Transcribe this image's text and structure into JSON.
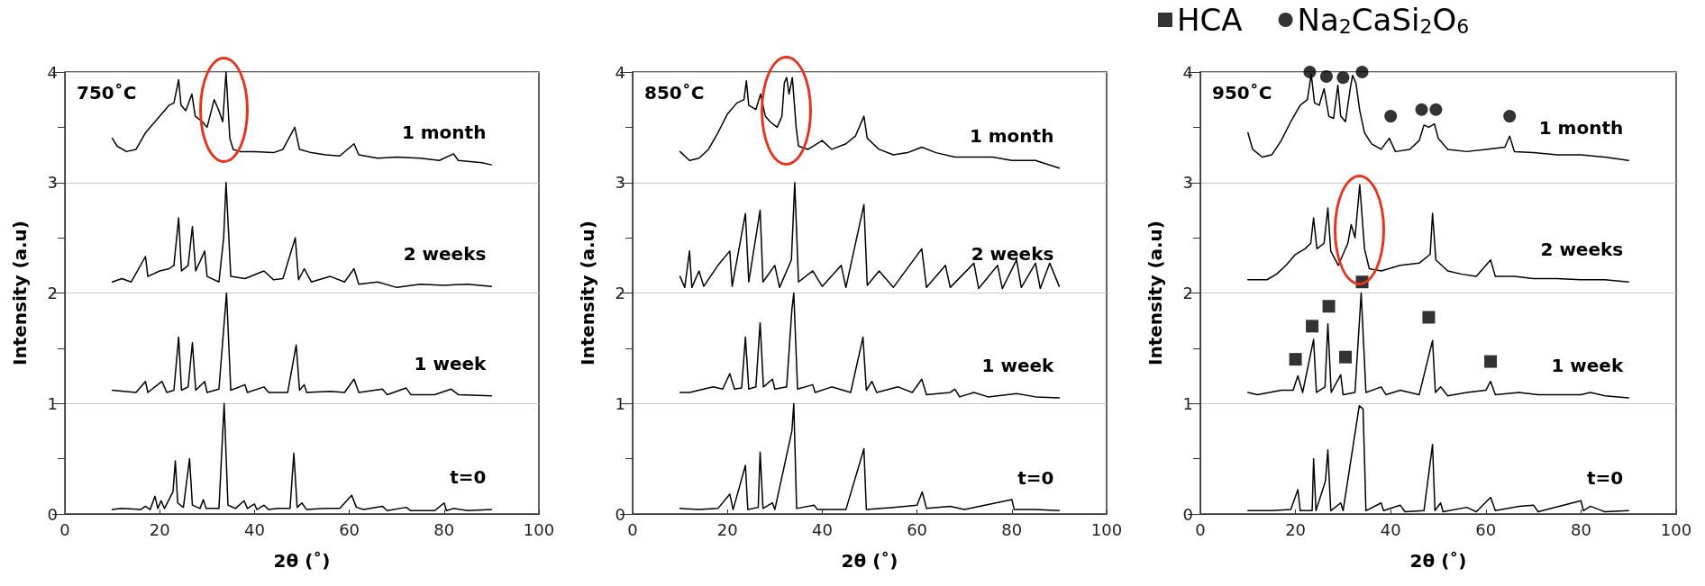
{
  "chart_data": [
    {
      "type": "line",
      "title": "750˚C",
      "xlabel": "2θ (˚)",
      "ylabel": "Intensity (a.u)",
      "xlim": [
        0,
        100
      ],
      "xticks": [
        0,
        20,
        40,
        60,
        80,
        100
      ],
      "ylim": [
        0,
        4
      ],
      "yticks": [
        0,
        {
          "value": 0.5,
          "label": null
        },
        1,
        {
          "value": 1.5,
          "label": null
        },
        2,
        {
          "value": 2.5,
          "label": null
        },
        3,
        {
          "value": 3.5,
          "label": null
        },
        4
      ],
      "grid": "y",
      "marker": "none",
      "line_style": "solid",
      "legend": false,
      "series": [
        {
          "name": "t=0",
          "color": "#000000",
          "x": [
            10,
            12,
            16,
            17,
            18,
            19,
            19.6,
            20.3,
            21,
            22.8,
            23.3,
            23.8,
            25,
            26.3,
            26.9,
            28.5,
            29.2,
            29.8,
            32.5,
            33.6,
            34.4,
            36,
            37.8,
            38.5,
            40,
            40.5,
            42,
            43,
            45,
            47.5,
            48.3,
            49,
            50,
            51,
            55,
            58,
            60.5,
            61.5,
            63,
            67,
            68,
            72,
            73,
            78,
            80,
            80.5,
            82,
            85,
            90
          ],
          "values": [
            0.04,
            0.05,
            0.04,
            0.07,
            0.04,
            0.16,
            0.05,
            0.12,
            0.05,
            0.2,
            0.48,
            0.1,
            0.06,
            0.5,
            0.08,
            0.05,
            0.13,
            0.05,
            0.05,
            1.0,
            0.08,
            0.05,
            0.12,
            0.05,
            0.09,
            0.04,
            0.08,
            0.04,
            0.05,
            0.05,
            0.55,
            0.06,
            0.1,
            0.04,
            0.05,
            0.05,
            0.17,
            0.06,
            0.04,
            0.07,
            0.03,
            0.06,
            0.03,
            0.03,
            0.1,
            0.03,
            0.05,
            0.03,
            0.04
          ]
        },
        {
          "name": "1 week",
          "color": "#000000",
          "x": [
            10,
            15,
            17,
            17.5,
            20.5,
            21.5,
            23,
            24,
            24.6,
            26,
            26.9,
            27.6,
            29.5,
            30,
            32.5,
            34.1,
            35,
            38,
            38.5,
            42,
            43,
            47,
            48.8,
            49.5,
            50.5,
            51,
            56,
            59,
            61,
            62,
            67,
            68,
            72,
            73,
            78,
            81.5,
            83,
            90
          ],
          "values": [
            1.12,
            1.1,
            1.2,
            1.1,
            1.2,
            1.1,
            1.12,
            1.6,
            1.12,
            1.15,
            1.55,
            1.12,
            1.2,
            1.1,
            1.13,
            2.0,
            1.12,
            1.17,
            1.1,
            1.15,
            1.1,
            1.1,
            1.53,
            1.12,
            1.17,
            1.1,
            1.11,
            1.1,
            1.22,
            1.1,
            1.13,
            1.08,
            1.14,
            1.08,
            1.08,
            1.13,
            1.08,
            1.07
          ]
        },
        {
          "name": "2 weeks",
          "color": "#000000",
          "x": [
            10,
            12,
            14,
            17,
            17.5,
            20,
            22,
            23,
            24,
            24.6,
            26,
            26.9,
            27.6,
            29.5,
            30,
            32.5,
            33.5,
            34,
            35,
            38,
            42,
            44,
            46,
            48.6,
            49.3,
            50.5,
            52,
            56,
            59,
            61,
            62,
            66,
            70,
            75,
            80,
            85,
            90
          ],
          "values": [
            2.1,
            2.13,
            2.1,
            2.33,
            2.15,
            2.2,
            2.22,
            2.25,
            2.68,
            2.2,
            2.25,
            2.6,
            2.2,
            2.38,
            2.15,
            2.1,
            2.5,
            3.0,
            2.15,
            2.13,
            2.2,
            2.12,
            2.13,
            2.5,
            2.12,
            2.22,
            2.1,
            2.15,
            2.1,
            2.22,
            2.08,
            2.1,
            2.05,
            2.08,
            2.07,
            2.08,
            2.06
          ]
        },
        {
          "name": "1 month",
          "color": "#000000",
          "x": [
            10,
            11,
            13,
            15,
            17,
            19,
            21,
            22,
            23,
            24,
            24.5,
            25.5,
            26.8,
            27.5,
            29,
            30,
            31.5,
            32.5,
            33.3,
            34,
            34.8,
            35.5,
            37,
            40,
            44,
            46,
            48.5,
            49.5,
            52,
            55,
            58,
            61,
            62,
            66,
            70,
            75,
            79,
            82,
            83,
            88,
            90
          ],
          "values": [
            3.4,
            3.33,
            3.28,
            3.3,
            3.45,
            3.55,
            3.65,
            3.7,
            3.72,
            3.93,
            3.7,
            3.65,
            3.8,
            3.6,
            3.55,
            3.5,
            3.75,
            3.65,
            3.55,
            4.0,
            3.4,
            3.3,
            3.28,
            3.28,
            3.27,
            3.3,
            3.5,
            3.3,
            3.27,
            3.25,
            3.24,
            3.35,
            3.25,
            3.22,
            3.23,
            3.22,
            3.2,
            3.26,
            3.2,
            3.18,
            3.16
          ]
        }
      ]
    },
    {
      "type": "line",
      "title": "850˚C",
      "xlabel": "2θ (˚)",
      "ylabel": "Intensity (a.u)",
      "xlim": [
        0,
        100
      ],
      "xticks": [
        0,
        20,
        40,
        60,
        80,
        100
      ],
      "ylim": [
        0,
        4
      ],
      "yticks": [
        0,
        {
          "value": 0.5,
          "label": null
        },
        1,
        {
          "value": 1.5,
          "label": null
        },
        2,
        {
          "value": 2.5,
          "label": null
        },
        3,
        {
          "value": 3.5,
          "label": null
        },
        4
      ],
      "grid": "y",
      "marker": "none",
      "line_style": "solid",
      "legend": false,
      "series": [
        {
          "name": "t=0",
          "color": "#000000",
          "x": [
            10,
            14,
            18,
            20.5,
            21.2,
            23.8,
            24.3,
            26.5,
            26.9,
            27.5,
            29.5,
            30,
            33.6,
            34,
            34.6,
            38.3,
            39,
            45,
            48.8,
            49.3,
            55,
            60,
            61.1,
            62,
            67,
            70,
            80,
            80.5,
            85,
            90
          ],
          "values": [
            0.05,
            0.04,
            0.05,
            0.18,
            0.04,
            0.44,
            0.04,
            0.06,
            0.56,
            0.05,
            0.1,
            0.04,
            0.75,
            1.0,
            0.05,
            0.08,
            0.04,
            0.04,
            0.59,
            0.04,
            0.06,
            0.08,
            0.2,
            0.05,
            0.07,
            0.04,
            0.13,
            0.04,
            0.04,
            0.03
          ]
        },
        {
          "name": "1 week",
          "color": "#000000",
          "x": [
            10,
            12,
            17,
            19,
            20.5,
            21.5,
            23,
            23.8,
            24.5,
            26,
            26.9,
            27.6,
            29.5,
            30,
            32.5,
            33.6,
            34,
            34.8,
            38,
            38.5,
            42,
            46,
            48.6,
            49.3,
            50.5,
            51.5,
            56,
            59,
            61,
            62,
            67,
            68,
            69,
            72,
            75,
            81,
            85,
            90
          ],
          "values": [
            1.1,
            1.1,
            1.15,
            1.13,
            1.27,
            1.13,
            1.14,
            1.6,
            1.13,
            1.15,
            1.73,
            1.15,
            1.22,
            1.13,
            1.15,
            1.85,
            2.0,
            1.13,
            1.17,
            1.1,
            1.15,
            1.1,
            1.6,
            1.12,
            1.2,
            1.1,
            1.15,
            1.1,
            1.22,
            1.08,
            1.1,
            1.13,
            1.06,
            1.1,
            1.06,
            1.09,
            1.06,
            1.05
          ]
        },
        {
          "name": "2 weeks",
          "color": "#000000",
          "x": [
            10,
            11,
            12,
            12.5,
            14,
            15,
            18,
            20.5,
            21,
            23.8,
            24.5,
            26.9,
            27.5,
            30,
            31,
            33.5,
            34.2,
            35,
            38,
            40,
            44,
            45,
            48.8,
            49.5,
            52,
            55,
            61,
            62,
            66,
            67,
            72,
            73,
            77,
            78,
            81,
            82,
            85,
            86,
            88,
            90
          ],
          "values": [
            2.15,
            2.05,
            2.38,
            2.05,
            2.2,
            2.06,
            2.25,
            2.38,
            2.06,
            2.72,
            2.1,
            2.75,
            2.1,
            2.25,
            2.05,
            2.3,
            3.0,
            2.1,
            2.2,
            2.06,
            2.25,
            2.05,
            2.8,
            2.07,
            2.2,
            2.05,
            2.4,
            2.05,
            2.25,
            2.05,
            2.27,
            2.04,
            2.25,
            2.04,
            2.3,
            2.05,
            2.27,
            2.04,
            2.27,
            2.06
          ]
        },
        {
          "name": "1 month",
          "color": "#000000",
          "x": [
            10,
            12,
            14,
            16,
            18,
            20,
            22,
            23.5,
            24,
            24.5,
            26,
            27,
            28,
            29,
            30.5,
            31.5,
            32,
            32.5,
            33,
            33.7,
            34.5,
            35,
            37,
            40,
            42,
            45,
            47,
            48.8,
            49.5,
            52,
            55,
            58,
            61,
            64,
            68,
            72,
            76,
            80,
            85,
            90
          ],
          "values": [
            3.28,
            3.2,
            3.22,
            3.3,
            3.45,
            3.62,
            3.72,
            3.75,
            3.92,
            3.7,
            3.66,
            3.8,
            3.6,
            3.55,
            3.5,
            3.6,
            3.9,
            3.95,
            3.8,
            3.95,
            3.5,
            3.33,
            3.3,
            3.38,
            3.3,
            3.35,
            3.42,
            3.6,
            3.4,
            3.3,
            3.25,
            3.27,
            3.32,
            3.27,
            3.23,
            3.23,
            3.23,
            3.2,
            3.2,
            3.13
          ]
        }
      ]
    },
    {
      "type": "line",
      "title": "950˚C",
      "xlabel": "2θ (˚)",
      "ylabel": "Intensity (a.u)",
      "xlim": [
        0,
        100
      ],
      "xticks": [
        0,
        20,
        40,
        60,
        80,
        100
      ],
      "ylim": [
        0,
        4
      ],
      "yticks": [
        0,
        {
          "value": 0.5,
          "label": null
        },
        1,
        {
          "value": 1.5,
          "label": null
        },
        2,
        {
          "value": 2.5,
          "label": null
        },
        3,
        {
          "value": 3.5,
          "label": null
        },
        4
      ],
      "grid": "y",
      "marker": "none",
      "line_style": "solid",
      "legend": "top",
      "series": [
        {
          "name": "t=0",
          "color": "#000000",
          "x": [
            10,
            15,
            19,
            20.5,
            21,
            23.5,
            23.8,
            24.3,
            26.3,
            26.8,
            27.4,
            29.5,
            30,
            33.4,
            34.2,
            34.8,
            38,
            38.5,
            42,
            43,
            47,
            48.8,
            49.3,
            50.5,
            51,
            56,
            58,
            61,
            62,
            67,
            70,
            71,
            80,
            80.5,
            82,
            85,
            90
          ],
          "values": [
            0.03,
            0.03,
            0.04,
            0.22,
            0.03,
            0.03,
            0.5,
            0.03,
            0.3,
            0.58,
            0.03,
            0.1,
            0.03,
            0.98,
            0.95,
            0.03,
            0.1,
            0.03,
            0.08,
            0.02,
            0.03,
            0.63,
            0.03,
            0.1,
            0.02,
            0.06,
            0.02,
            0.15,
            0.03,
            0.07,
            0.08,
            0.02,
            0.12,
            0.03,
            0.07,
            0.02,
            0.03
          ]
        },
        {
          "name": "1 week",
          "color": "#000000",
          "x": [
            10,
            12,
            17,
            19.5,
            20.5,
            21.5,
            23.8,
            24.4,
            26.2,
            26.8,
            27.5,
            29.5,
            30,
            32.5,
            33.8,
            34.8,
            38,
            39,
            42,
            46,
            48.8,
            49.4,
            50.5,
            52,
            56,
            60,
            61,
            62,
            67,
            71,
            80,
            82,
            85,
            90
          ],
          "values": [
            1.1,
            1.08,
            1.12,
            1.12,
            1.25,
            1.1,
            1.58,
            1.1,
            1.15,
            1.72,
            1.1,
            1.26,
            1.08,
            1.1,
            2.0,
            1.1,
            1.15,
            1.08,
            1.12,
            1.08,
            1.57,
            1.1,
            1.15,
            1.07,
            1.1,
            1.12,
            1.2,
            1.08,
            1.1,
            1.08,
            1.08,
            1.1,
            1.07,
            1.05
          ]
        },
        {
          "name": "2 weeks",
          "color": "#000000",
          "x": [
            10,
            14,
            16,
            18,
            20,
            22,
            23.2,
            23.8,
            24.5,
            26,
            26.8,
            27.4,
            29,
            31,
            31.7,
            32.5,
            33.5,
            34.5,
            35.5,
            38,
            42,
            46,
            48.3,
            48.8,
            49.5,
            52,
            55,
            58,
            61,
            62,
            66,
            70,
            75,
            80,
            85,
            90
          ],
          "values": [
            2.12,
            2.12,
            2.17,
            2.25,
            2.35,
            2.4,
            2.45,
            2.68,
            2.4,
            2.45,
            2.77,
            2.38,
            2.25,
            2.45,
            2.62,
            2.5,
            2.98,
            2.4,
            2.22,
            2.2,
            2.25,
            2.27,
            2.35,
            2.72,
            2.3,
            2.2,
            2.17,
            2.15,
            2.3,
            2.15,
            2.15,
            2.13,
            2.13,
            2.12,
            2.12,
            2.1
          ]
        },
        {
          "name": "1 month",
          "color": "#000000",
          "x": [
            10,
            11,
            13,
            15,
            17,
            19,
            21,
            22.5,
            23.3,
            24,
            25,
            26,
            27,
            28,
            28.9,
            29.5,
            30.5,
            31.5,
            32,
            32.7,
            33.5,
            34.5,
            36,
            38,
            39.7,
            41,
            44,
            46,
            47,
            48,
            49.2,
            50,
            52,
            56,
            60,
            64,
            65,
            66,
            70,
            75,
            80,
            85,
            90
          ],
          "values": [
            3.45,
            3.3,
            3.23,
            3.25,
            3.38,
            3.55,
            3.7,
            3.75,
            3.98,
            3.72,
            3.7,
            3.85,
            3.6,
            3.58,
            3.88,
            3.6,
            3.55,
            3.85,
            3.97,
            3.9,
            3.65,
            3.45,
            3.35,
            3.3,
            3.4,
            3.28,
            3.3,
            3.38,
            3.52,
            3.5,
            3.53,
            3.4,
            3.3,
            3.28,
            3.3,
            3.32,
            3.42,
            3.28,
            3.27,
            3.25,
            3.25,
            3.23,
            3.2
          ]
        },
        {
          "name": "HCA",
          "type": "scatter",
          "marker": "square",
          "color": "#000000",
          "x": [
            20,
            23.5,
            27,
            30.5,
            34,
            48,
            61
          ],
          "values": [
            1.4,
            1.7,
            1.88,
            1.42,
            2.1,
            1.78,
            1.38
          ]
        },
        {
          "name": "Na$_{2}$CaSi$_{2}$O$_{6}$",
          "type": "scatter",
          "marker": "circle",
          "color": "#000000",
          "x": [
            23,
            26.5,
            30,
            34,
            40,
            46.5,
            49.5,
            65
          ],
          "values": [
            4.0,
            3.96,
            3.95,
            4.0,
            3.6,
            3.66,
            3.66,
            3.6
          ]
        }
      ]
    }
  ]
}
